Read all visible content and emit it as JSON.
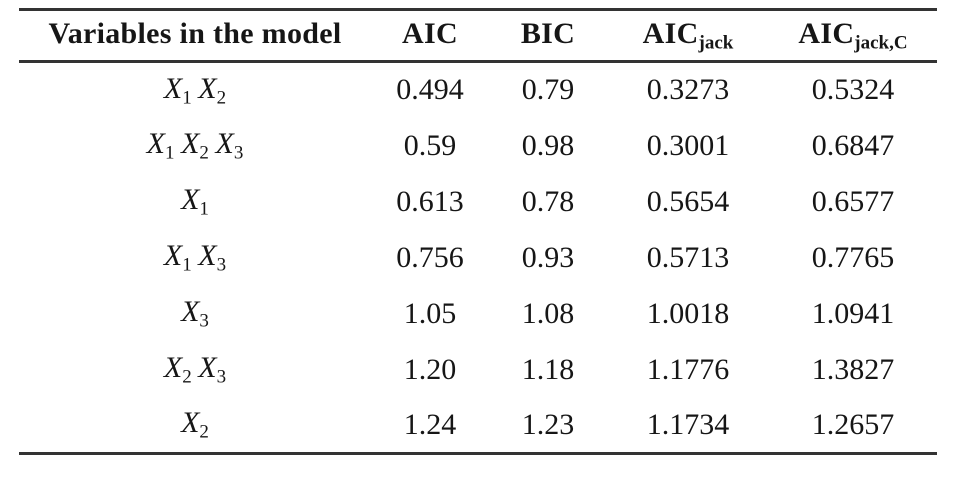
{
  "colors": {
    "rule": "#333333",
    "text": "#161616",
    "background": "#ffffff"
  },
  "table": {
    "columns": [
      {
        "label": "Variables in the model",
        "sub": ""
      },
      {
        "label": "AIC",
        "sub": ""
      },
      {
        "label": "BIC",
        "sub": ""
      },
      {
        "label": "AIC",
        "sub": "jack"
      },
      {
        "label": "AIC",
        "sub": "jack,C"
      }
    ],
    "rows": [
      {
        "model": [
          {
            "base": "X",
            "sub": "1"
          },
          {
            "base": "X",
            "sub": "2"
          }
        ],
        "values": [
          "0.494",
          "0.79",
          "0.3273",
          "0.5324"
        ]
      },
      {
        "model": [
          {
            "base": "X",
            "sub": "1"
          },
          {
            "base": "X",
            "sub": "2"
          },
          {
            "base": "X",
            "sub": "3"
          }
        ],
        "values": [
          "0.59",
          "0.98",
          "0.3001",
          "0.6847"
        ]
      },
      {
        "model": [
          {
            "base": "X",
            "sub": "1"
          }
        ],
        "values": [
          "0.613",
          "0.78",
          "0.5654",
          "0.6577"
        ]
      },
      {
        "model": [
          {
            "base": "X",
            "sub": "1"
          },
          {
            "base": "X",
            "sub": "3"
          }
        ],
        "values": [
          "0.756",
          "0.93",
          "0.5713",
          "0.7765"
        ]
      },
      {
        "model": [
          {
            "base": "X",
            "sub": "3"
          }
        ],
        "values": [
          "1.05",
          "1.08",
          "1.0018",
          "1.0941"
        ]
      },
      {
        "model": [
          {
            "base": "X",
            "sub": "2"
          },
          {
            "base": "X",
            "sub": "3"
          }
        ],
        "values": [
          "1.20",
          "1.18",
          "1.1776",
          "1.3827"
        ]
      },
      {
        "model": [
          {
            "base": "X",
            "sub": "2"
          }
        ],
        "values": [
          "1.24",
          "1.23",
          "1.1734",
          "1.2657"
        ]
      }
    ]
  }
}
